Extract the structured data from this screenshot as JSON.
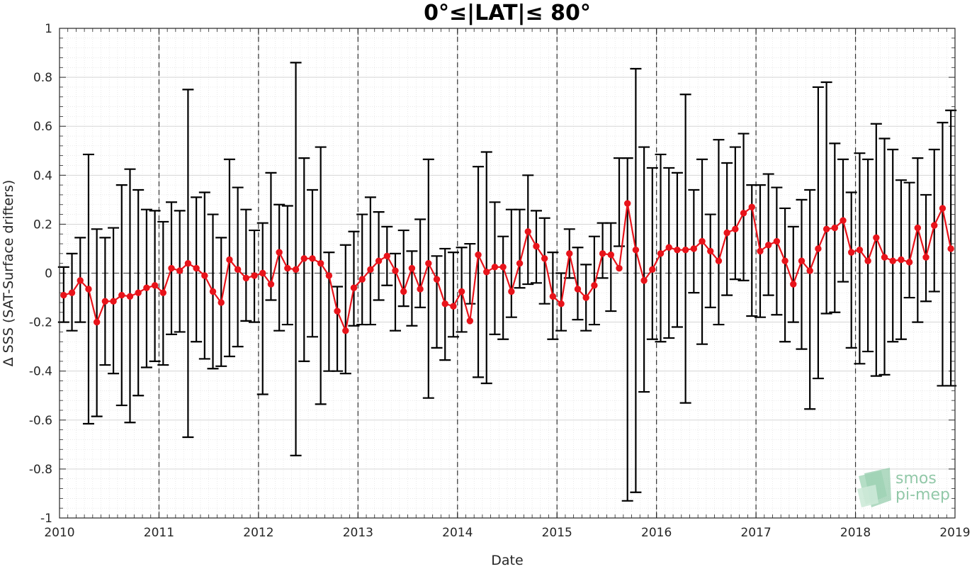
{
  "chart_data": {
    "type": "line",
    "title": "0°≤|LAT|≤ 80°",
    "xlabel": "Date",
    "ylabel": "Δ SSS (SAT-Surface drifters)",
    "xlim": [
      2010,
      2019
    ],
    "ylim": [
      -1,
      1
    ],
    "x_ticks": [
      "2010",
      "2011",
      "2012",
      "2013",
      "2014",
      "2015",
      "2016",
      "2017",
      "2018",
      "2019"
    ],
    "y_ticks": [
      "1",
      "0.8",
      "0.6",
      "0.4",
      "0.2",
      "0",
      "-0.2",
      "-0.4",
      "-0.6",
      "-0.8",
      "-1"
    ],
    "grid": true,
    "minor_grid": true,
    "zero_line": "dashed",
    "year_lines": "dashed",
    "series": [
      {
        "marker": "circle",
        "color": "#e8131a",
        "errorbar_color": "#000000",
        "x": [
          "2010-01",
          "2010-02",
          "2010-03",
          "2010-04",
          "2010-05",
          "2010-06",
          "2010-07",
          "2010-08",
          "2010-09",
          "2010-10",
          "2010-11",
          "2010-12",
          "2011-01",
          "2011-02",
          "2011-03",
          "2011-04",
          "2011-05",
          "2011-06",
          "2011-07",
          "2011-08",
          "2011-09",
          "2011-10",
          "2011-11",
          "2011-12",
          "2012-01",
          "2012-02",
          "2012-03",
          "2012-04",
          "2012-05",
          "2012-06",
          "2012-07",
          "2012-08",
          "2012-09",
          "2012-10",
          "2012-11",
          "2012-12",
          "2013-01",
          "2013-02",
          "2013-03",
          "2013-04",
          "2013-05",
          "2013-06",
          "2013-07",
          "2013-08",
          "2013-09",
          "2013-10",
          "2013-11",
          "2013-12",
          "2014-01",
          "2014-02",
          "2014-03",
          "2014-04",
          "2014-05",
          "2014-06",
          "2014-07",
          "2014-08",
          "2014-09",
          "2014-10",
          "2014-11",
          "2014-12",
          "2015-01",
          "2015-02",
          "2015-03",
          "2015-04",
          "2015-05",
          "2015-06",
          "2015-07",
          "2015-08",
          "2015-09",
          "2015-10",
          "2015-11",
          "2015-12",
          "2016-01",
          "2016-02",
          "2016-03",
          "2016-04",
          "2016-05",
          "2016-06",
          "2016-07",
          "2016-08",
          "2016-09",
          "2016-10",
          "2016-11",
          "2016-12",
          "2017-01",
          "2017-02",
          "2017-03",
          "2017-04",
          "2017-05",
          "2017-06",
          "2017-07",
          "2017-08",
          "2017-09",
          "2017-10",
          "2017-11",
          "2017-12",
          "2018-01",
          "2018-02",
          "2018-03",
          "2018-04",
          "2018-05",
          "2018-06",
          "2018-07",
          "2018-08",
          "2018-09",
          "2018-10",
          "2018-11",
          "2018-12"
        ],
        "y": [
          -0.09,
          -0.08,
          -0.03,
          -0.065,
          -0.2,
          -0.115,
          -0.115,
          -0.09,
          -0.095,
          -0.08,
          -0.06,
          -0.05,
          -0.08,
          0.02,
          0.01,
          0.04,
          0.02,
          -0.01,
          -0.075,
          -0.12,
          0.055,
          0.015,
          -0.02,
          -0.01,
          0.0,
          -0.045,
          0.085,
          0.02,
          0.015,
          0.06,
          0.06,
          0.04,
          -0.01,
          -0.155,
          -0.235,
          -0.06,
          -0.025,
          0.015,
          0.05,
          0.07,
          0.01,
          -0.075,
          0.02,
          -0.065,
          0.04,
          -0.025,
          -0.125,
          -0.135,
          -0.075,
          -0.195,
          0.075,
          0.005,
          0.025,
          0.025,
          -0.075,
          0.04,
          0.17,
          0.11,
          0.06,
          -0.095,
          -0.125,
          0.08,
          -0.065,
          -0.1,
          -0.05,
          0.08,
          0.075,
          0.02,
          0.285,
          0.095,
          -0.03,
          0.015,
          0.08,
          0.105,
          0.095,
          0.095,
          0.1,
          0.13,
          0.09,
          0.05,
          0.165,
          0.18,
          0.245,
          0.27,
          0.09,
          0.115,
          0.13,
          0.05,
          -0.045,
          0.05,
          0.01,
          0.1,
          0.18,
          0.185,
          0.215,
          0.085,
          0.095,
          0.05,
          0.145,
          0.065,
          0.05,
          0.055,
          0.045,
          0.185,
          0.065,
          0.195,
          0.265,
          0.1
        ],
        "err_low": [
          -0.2,
          -0.235,
          -0.2,
          -0.615,
          -0.585,
          -0.375,
          -0.41,
          -0.54,
          -0.61,
          -0.5,
          -0.385,
          -0.36,
          -0.375,
          -0.25,
          -0.24,
          -0.67,
          -0.28,
          -0.35,
          -0.39,
          -0.38,
          -0.34,
          -0.3,
          -0.195,
          -0.2,
          -0.495,
          -0.11,
          -0.235,
          -0.21,
          -0.745,
          -0.36,
          -0.26,
          -0.535,
          -0.4,
          -0.4,
          -0.41,
          -0.215,
          -0.21,
          -0.21,
          -0.11,
          -0.05,
          -0.235,
          -0.135,
          -0.215,
          -0.14,
          -0.51,
          -0.305,
          -0.355,
          -0.26,
          -0.24,
          -0.125,
          -0.425,
          -0.45,
          -0.25,
          -0.27,
          -0.18,
          -0.06,
          -0.045,
          -0.04,
          -0.125,
          -0.27,
          -0.235,
          -0.02,
          -0.19,
          -0.235,
          -0.21,
          -0.02,
          -0.155,
          0.11,
          -0.93,
          -0.895,
          -0.485,
          -0.27,
          -0.28,
          -0.265,
          -0.22,
          -0.53,
          -0.08,
          -0.29,
          -0.14,
          -0.21,
          -0.09,
          -0.025,
          -0.03,
          -0.175,
          -0.18,
          -0.09,
          -0.17,
          -0.28,
          -0.2,
          -0.31,
          -0.555,
          -0.43,
          -0.165,
          -0.16,
          -0.035,
          -0.305,
          -0.37,
          -0.32,
          -0.42,
          -0.415,
          -0.28,
          -0.27,
          -0.1,
          -0.2,
          -0.115,
          -0.075,
          -0.46,
          -0.46
        ],
        "err_high": [
          0.025,
          0.08,
          0.145,
          0.485,
          0.18,
          0.145,
          0.185,
          0.36,
          0.425,
          0.34,
          0.26,
          0.255,
          0.21,
          0.29,
          0.255,
          0.75,
          0.31,
          0.33,
          0.24,
          0.145,
          0.465,
          0.35,
          0.26,
          0.175,
          0.205,
          0.41,
          0.28,
          0.275,
          0.86,
          0.47,
          0.34,
          0.515,
          0.085,
          -0.055,
          0.115,
          0.17,
          0.24,
          0.31,
          0.25,
          0.19,
          0.08,
          0.175,
          0.09,
          0.22,
          0.465,
          0.07,
          0.1,
          0.085,
          0.105,
          0.12,
          0.435,
          0.495,
          0.29,
          0.15,
          0.26,
          0.26,
          0.4,
          0.255,
          0.225,
          0.085,
          0.0,
          0.18,
          0.105,
          0.035,
          0.15,
          0.205,
          0.205,
          0.47,
          0.47,
          0.835,
          0.515,
          0.43,
          0.485,
          0.43,
          0.41,
          0.73,
          0.34,
          0.465,
          0.24,
          0.545,
          0.45,
          0.515,
          0.57,
          0.36,
          0.36,
          0.405,
          0.35,
          0.265,
          0.19,
          0.3,
          0.34,
          0.76,
          0.78,
          0.53,
          0.465,
          0.33,
          0.49,
          0.465,
          0.61,
          0.55,
          0.505,
          0.38,
          0.37,
          0.47,
          0.32,
          0.505,
          0.615,
          0.665
        ]
      }
    ]
  },
  "logo": {
    "line1": "smos",
    "line2": "pi-mep"
  }
}
